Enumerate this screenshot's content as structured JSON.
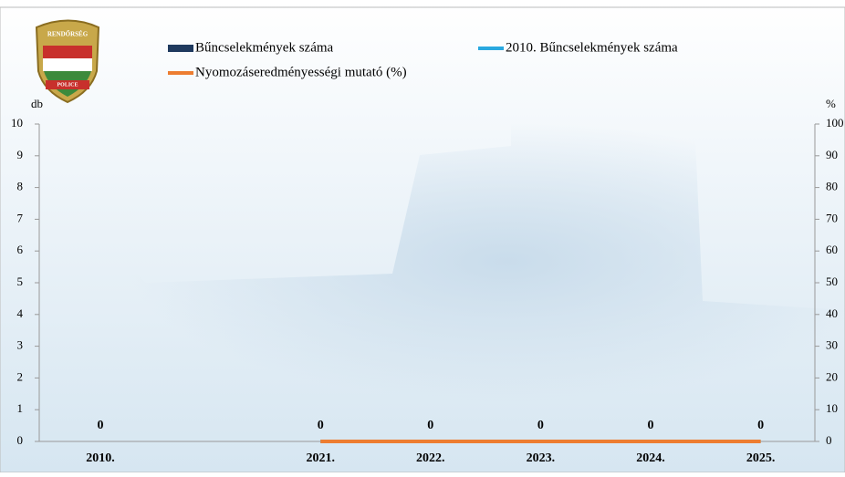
{
  "logo": {
    "top": "RENDŐRSÉG",
    "bottom": "POLICE"
  },
  "chart_data": {
    "type": "bar",
    "categories": [
      "2010.",
      null,
      "2021.",
      "2022.",
      "2023.",
      "2024.",
      "2025."
    ],
    "series": [
      {
        "name": "Bűncselekmények száma",
        "color": "#1f3a5f",
        "values": [
          0,
          null,
          0,
          0,
          0,
          0,
          0
        ]
      },
      {
        "name": "2010. Bűncselekmények száma",
        "color": "#29a8e0",
        "type": "line",
        "values": [
          null,
          null,
          0,
          0,
          0,
          0,
          0
        ]
      },
      {
        "name": "Nyomozáseredményességi mutató (%)",
        "color": "#ed7d31",
        "type": "line",
        "axis": "y2",
        "values": [
          null,
          null,
          0,
          0,
          0,
          0,
          0
        ]
      }
    ],
    "ylabel": "db",
    "y2label": "%",
    "ylim": [
      0,
      10
    ],
    "yticks": [
      0,
      1,
      2,
      3,
      4,
      5,
      6,
      7,
      8,
      9,
      10
    ],
    "y2lim": [
      0,
      100
    ],
    "y2ticks": [
      0,
      10,
      20,
      30,
      40,
      50,
      60,
      70,
      80,
      90,
      100
    ]
  }
}
